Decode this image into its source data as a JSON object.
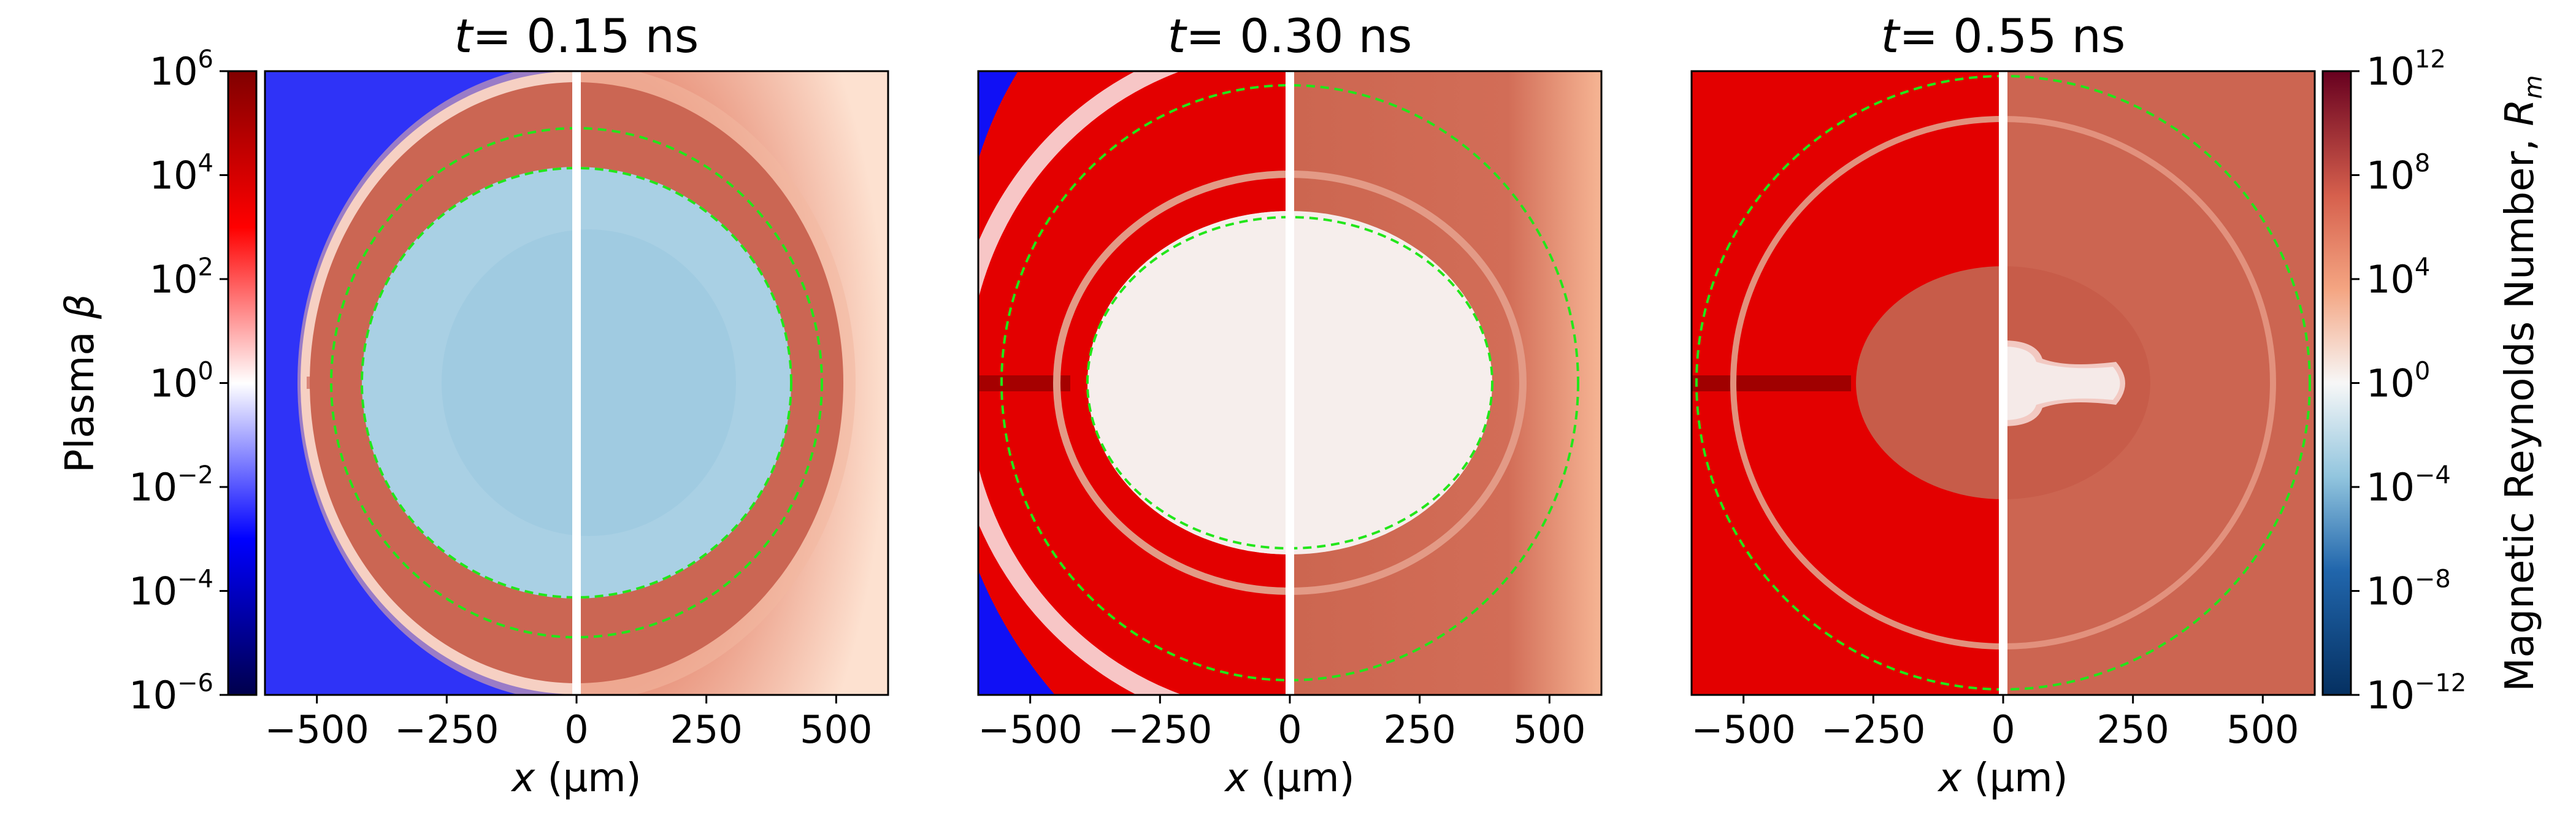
{
  "chart_data": {
    "type": "heatmap",
    "panels": [
      {
        "title_var": "t",
        "title_val": "= 0.15 ns"
      },
      {
        "title_var": "t",
        "title_val": "= 0.30 ns"
      },
      {
        "title_var": "t",
        "title_val": "= 0.55 ns"
      }
    ],
    "x_axis": {
      "label_var": "x",
      "label_unit": "(μm)",
      "xlim": [
        -600,
        600
      ],
      "ticks": [
        -500,
        -250,
        0,
        250,
        500
      ],
      "tick_labels": [
        "−500",
        "−250",
        "0",
        "250",
        "500"
      ]
    },
    "left_colorbar": {
      "label": "Plasma β",
      "label_text": "Plasma ",
      "label_symbol": "β",
      "scale": "log",
      "range_exp": [
        -6,
        6
      ],
      "tick_exps": [
        "6",
        "4",
        "2",
        "0",
        "−2",
        "−4",
        "−6"
      ],
      "tick_base": "10",
      "colormap": "seismic",
      "colors": [
        "#00004c",
        "#0000ff",
        "#ffffff",
        "#ff0000",
        "#800000"
      ]
    },
    "right_colorbar": {
      "label": "Magnetic Reynolds Number, R_m",
      "label_text": "Magnetic Reynolds Number, ",
      "label_symbol": "R",
      "label_sub": "m",
      "scale": "log",
      "range_exp": [
        -12,
        12
      ],
      "tick_exps": [
        "12",
        "8",
        "4",
        "0",
        "−4",
        "−8",
        "−12"
      ],
      "tick_base": "10",
      "colormap": "RdBu_r",
      "colors": [
        "#053061",
        "#4393c3",
        "#f7f7f7",
        "#d6604d",
        "#67001f"
      ]
    },
    "contour_style": "green dashed"
  }
}
